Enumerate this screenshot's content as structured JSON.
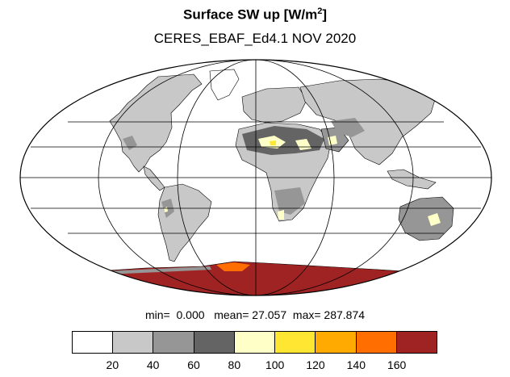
{
  "title": {
    "main": "Surface SW up [W/m",
    "superscript": "2",
    "close": "]"
  },
  "subtitle": "CERES_EBAF_Ed4.1 NOV 2020",
  "stats": {
    "min_label": "min=",
    "min_value": "0.000",
    "mean_label": "mean=",
    "mean_value": "27.057",
    "max_label": "max=",
    "max_value": "287.874"
  },
  "colorbar": {
    "colors": [
      "#ffffff",
      "#c8c8c8",
      "#969696",
      "#646464",
      "#ffffc8",
      "#ffe632",
      "#ffaa00",
      "#ff6e00",
      "#a02323"
    ],
    "labels": [
      "20",
      "40",
      "60",
      "80",
      "100",
      "120",
      "140",
      "160"
    ]
  },
  "map": {
    "projection": "Mollweide",
    "center_longitude": 0,
    "gridlines": "every 30° latitude / 60° longitude"
  }
}
